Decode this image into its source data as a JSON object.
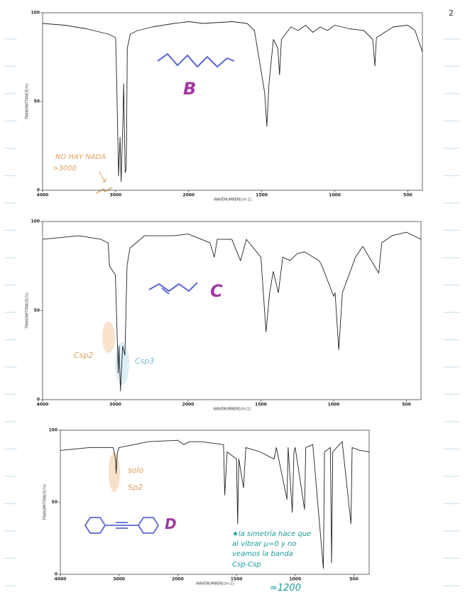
{
  "page_number": "2",
  "chart_data": [
    {
      "type": "line",
      "x_label": "WAVENUMBER[cm-1]",
      "y_label": "TRANSMITTANCE(%)",
      "color": "#222222",
      "xlim": [
        4000,
        400
      ],
      "ylim": [
        0,
        100
      ],
      "xticks": [
        4000,
        3000,
        2000,
        1500,
        1000,
        500
      ],
      "yticks": [
        0,
        50,
        100
      ],
      "x": [
        4000,
        3700,
        3400,
        3100,
        3000,
        2990,
        2960,
        2940,
        2925,
        2900,
        2890,
        2870,
        2855,
        2850,
        2840,
        2800,
        2700,
        2500,
        2200,
        2000,
        1900,
        1700,
        1600,
        1550,
        1480,
        1465,
        1450,
        1420,
        1390,
        1378,
        1365,
        1300,
        1250,
        1200,
        1150,
        1100,
        1050,
        1000,
        900,
        800,
        740,
        725,
        715,
        600,
        500,
        450,
        400
      ],
      "values": [
        94,
        93,
        91,
        88,
        86,
        70,
        8,
        30,
        5,
        40,
        60,
        10,
        12,
        30,
        80,
        88,
        90,
        92,
        94,
        95,
        94,
        95,
        94,
        90,
        55,
        36,
        60,
        85,
        80,
        65,
        85,
        92,
        90,
        93,
        89,
        92,
        90,
        93,
        91,
        90,
        85,
        70,
        86,
        92,
        93,
        90,
        78
      ],
      "annotations": [
        "B",
        "NO HAY NADA",
        ">3000"
      ]
    },
    {
      "type": "line",
      "x_label": "WAVENUMBER[cm-1]",
      "y_label": "TRANSMITTANCE(%)",
      "color": "#222222",
      "xlim": [
        4000,
        400
      ],
      "ylim": [
        0,
        100
      ],
      "xticks": [
        4000,
        3000,
        2000,
        1500,
        1000,
        500
      ],
      "yticks": [
        0,
        50,
        100
      ],
      "x": [
        4000,
        3500,
        3200,
        3100,
        3080,
        3000,
        2960,
        2950,
        2930,
        2900,
        2870,
        2860,
        2840,
        2800,
        2600,
        2200,
        2000,
        1850,
        1820,
        1800,
        1700,
        1640,
        1600,
        1500,
        1465,
        1440,
        1415,
        1380,
        1350,
        1300,
        1250,
        1200,
        1100,
        1080,
        1000,
        990,
        965,
        940,
        850,
        800,
        690,
        670,
        600,
        500,
        400
      ],
      "values": [
        90,
        92,
        90,
        88,
        75,
        70,
        15,
        30,
        5,
        30,
        25,
        40,
        75,
        85,
        92,
        92,
        93,
        88,
        80,
        90,
        90,
        78,
        90,
        80,
        38,
        60,
        72,
        60,
        80,
        78,
        82,
        83,
        78,
        75,
        58,
        60,
        28,
        60,
        80,
        86,
        71,
        88,
        92,
        94,
        90
      ],
      "annotations": [
        "C",
        "Csp2",
        "Csp3"
      ]
    },
    {
      "type": "line",
      "x_label": "WAVENUMBER[cm-1]",
      "y_label": "TRANSMITTANCE(%)",
      "color": "#222222",
      "xlim": [
        4000,
        370
      ],
      "ylim": [
        0,
        100
      ],
      "xticks": [
        4000,
        3000,
        2000,
        1500,
        1000,
        500
      ],
      "yticks": [
        0,
        50,
        100
      ],
      "x": [
        4000,
        3500,
        3100,
        3060,
        3050,
        3030,
        3000,
        2500,
        2000,
        1950,
        1900,
        1800,
        1610,
        1600,
        1580,
        1500,
        1490,
        1480,
        1440,
        1420,
        1300,
        1180,
        1160,
        1070,
        1060,
        1025,
        1010,
        1000,
        920,
        910,
        850,
        760,
        750,
        700,
        690,
        680,
        600,
        525,
        515,
        450,
        370
      ],
      "values": [
        86,
        88,
        88,
        80,
        70,
        84,
        88,
        92,
        93,
        90,
        92,
        92,
        90,
        55,
        85,
        80,
        35,
        80,
        60,
        88,
        85,
        80,
        88,
        52,
        88,
        43,
        85,
        88,
        45,
        88,
        90,
        4,
        85,
        88,
        8,
        85,
        92,
        35,
        88,
        86,
        85
      ],
      "annotations": [
        "D",
        "solo",
        "Sp2",
        "★la simetría hace que",
        "al vibrar μ=0 y no",
        "veamos la banda",
        "Csp-Csp",
        "≈1200"
      ]
    }
  ]
}
